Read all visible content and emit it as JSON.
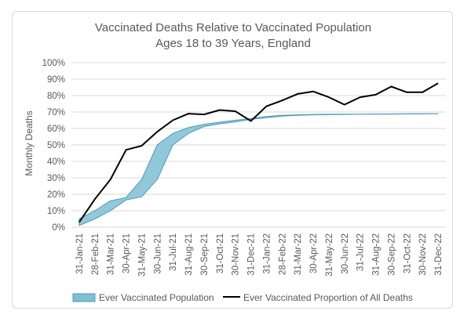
{
  "chart_data": {
    "type": "area",
    "title": "Vaccinated Deaths Relative to Vaccinated Population",
    "subtitle": "Ages 18 to 39 Years, England",
    "xlabel": "",
    "ylabel": "Monthly Deaths",
    "ylim": [
      0,
      1
    ],
    "y_tick_labels": [
      "0%",
      "10%",
      "20%",
      "30%",
      "40%",
      "50%",
      "60%",
      "70%",
      "80%",
      "90%",
      "100%"
    ],
    "grid": "horizontal",
    "legend_position": "bottom",
    "categories": [
      "31-Jan-21",
      "28-Feb-21",
      "31-Mar-21",
      "30-Apr-21",
      "31-May-21",
      "30-Jun-21",
      "31-Jul-21",
      "31-Aug-21",
      "30-Sep-21",
      "31-Oct-21",
      "30-Nov-21",
      "31-Dec-21",
      "31-Jan-22",
      "28-Feb-22",
      "31-Mar-22",
      "30-Apr-22",
      "31-May-22",
      "30-Jun-22",
      "31-Jul-22",
      "31-Aug-22",
      "30-Sep-22",
      "31-Oct-22",
      "30-Nov-22",
      "31-Dec-22"
    ],
    "series": [
      {
        "name": "Ever Vaccinated Population",
        "kind": "band",
        "color": "#7fbfd3",
        "edge_color": "#4a9bb8",
        "upper": [
          0.05,
          0.1,
          0.16,
          0.18,
          0.29,
          0.5,
          0.57,
          0.605,
          0.625,
          0.638,
          0.65,
          0.66,
          0.673,
          0.68,
          0.683,
          0.685,
          0.686,
          0.687,
          0.687,
          0.688,
          0.688,
          0.689,
          0.689,
          0.69
        ],
        "lower": [
          0.01,
          0.05,
          0.1,
          0.165,
          0.185,
          0.29,
          0.5,
          0.57,
          0.612,
          0.628,
          0.64,
          0.655,
          0.665,
          0.675,
          0.68,
          0.683,
          0.684,
          0.685,
          0.686,
          0.687,
          0.687,
          0.688,
          0.688,
          0.689
        ]
      },
      {
        "name": "Ever Vaccinated Proportion of All Deaths",
        "kind": "line",
        "color": "#000000",
        "values": [
          0.03,
          0.17,
          0.29,
          0.47,
          0.495,
          0.58,
          0.65,
          0.69,
          0.685,
          0.712,
          0.705,
          0.645,
          0.735,
          0.77,
          0.81,
          0.825,
          0.79,
          0.745,
          0.79,
          0.805,
          0.855,
          0.82,
          0.82,
          0.875
        ]
      }
    ]
  }
}
